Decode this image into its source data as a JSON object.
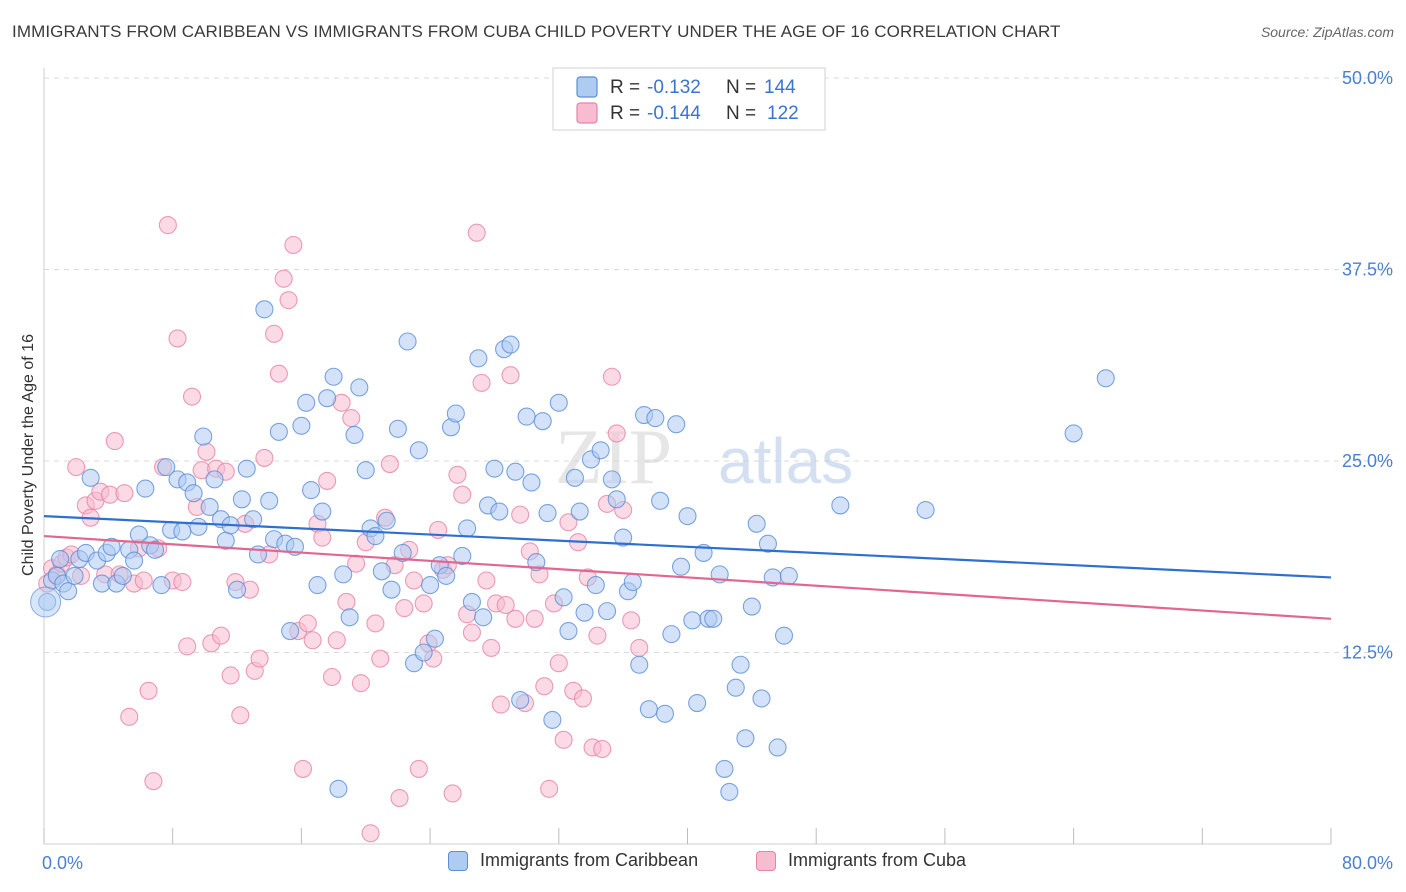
{
  "title": "IMMIGRANTS FROM CARIBBEAN VS IMMIGRANTS FROM CUBA CHILD POVERTY UNDER THE AGE OF 16 CORRELATION CHART",
  "source": "Source: ZipAtlas.com",
  "watermark": {
    "zip": "ZIP",
    "atlas": "atlas"
  },
  "colors": {
    "caribbean_fill": "#aecbf2",
    "caribbean_stroke": "#5b8fd6",
    "caribbean_line": "#2f6fd1",
    "cuba_fill": "#f7bcd0",
    "cuba_stroke": "#e683a6",
    "cuba_line": "#e26691",
    "axis_text": "#4a7fd1",
    "grid": "#d9d9d9"
  },
  "legend_top": [
    {
      "r_label": "R =",
      "r_value": "-0.132",
      "n_label": "N =",
      "n_value": "144"
    },
    {
      "r_label": "R =",
      "r_value": "-0.144",
      "n_label": "N =",
      "n_value": "122"
    }
  ],
  "chart_data": {
    "type": "scatter",
    "title": "IMMIGRANTS FROM CARIBBEAN VS IMMIGRANTS FROM CUBA CHILD POVERTY UNDER THE AGE OF 16 CORRELATION CHART",
    "xlabel": "",
    "ylabel": "Child Poverty Under the Age of 16",
    "xlim": [
      0,
      80
    ],
    "ylim": [
      0,
      50
    ],
    "x_tick_labels": [
      "0.0%",
      "80.0%"
    ],
    "y_ticks": [
      12.5,
      25.0,
      37.5,
      50.0
    ],
    "y_tick_labels": [
      "12.5%",
      "25.0%",
      "37.5%",
      "50.0%"
    ],
    "grid": true,
    "legend_position": "top-center",
    "series": [
      {
        "name": "Immigrants from Caribbean",
        "r": -0.132,
        "n": 144,
        "trend": {
          "x": [
            0,
            80
          ],
          "y": [
            21.4,
            17.4
          ]
        },
        "points": [
          [
            0.2,
            15.8
          ],
          [
            0.5,
            17.2
          ],
          [
            0.8,
            17.5
          ],
          [
            1.0,
            18.6
          ],
          [
            1.2,
            17.0
          ],
          [
            1.5,
            16.5
          ],
          [
            1.9,
            17.5
          ],
          [
            2.2,
            18.6
          ],
          [
            2.6,
            19.0
          ],
          [
            2.9,
            23.9
          ],
          [
            3.3,
            18.5
          ],
          [
            3.6,
            17.0
          ],
          [
            3.9,
            19.0
          ],
          [
            4.2,
            19.4
          ],
          [
            4.5,
            17.0
          ],
          [
            4.9,
            17.5
          ],
          [
            5.3,
            19.2
          ],
          [
            5.6,
            18.5
          ],
          [
            5.9,
            20.2
          ],
          [
            6.3,
            23.2
          ],
          [
            6.6,
            19.5
          ],
          [
            6.9,
            19.2
          ],
          [
            7.3,
            16.9
          ],
          [
            7.6,
            24.6
          ],
          [
            7.9,
            20.5
          ],
          [
            8.3,
            23.8
          ],
          [
            8.6,
            20.4
          ],
          [
            8.9,
            23.6
          ],
          [
            9.3,
            22.9
          ],
          [
            9.6,
            20.7
          ],
          [
            9.9,
            26.6
          ],
          [
            10.3,
            22.0
          ],
          [
            10.6,
            23.8
          ],
          [
            11.0,
            21.2
          ],
          [
            11.3,
            19.8
          ],
          [
            11.6,
            20.8
          ],
          [
            12.0,
            16.6
          ],
          [
            12.3,
            22.5
          ],
          [
            12.6,
            24.5
          ],
          [
            13.0,
            21.2
          ],
          [
            13.3,
            18.9
          ],
          [
            13.7,
            34.9
          ],
          [
            14.0,
            22.4
          ],
          [
            14.3,
            19.9
          ],
          [
            14.6,
            26.9
          ],
          [
            15.0,
            19.6
          ],
          [
            15.3,
            13.9
          ],
          [
            15.6,
            19.4
          ],
          [
            16.0,
            27.3
          ],
          [
            16.3,
            28.8
          ],
          [
            16.6,
            23.1
          ],
          [
            17.0,
            16.9
          ],
          [
            17.3,
            21.7
          ],
          [
            17.6,
            29.1
          ],
          [
            18.0,
            30.5
          ],
          [
            18.3,
            3.6
          ],
          [
            18.6,
            17.6
          ],
          [
            19.0,
            14.8
          ],
          [
            19.3,
            26.7
          ],
          [
            19.6,
            29.8
          ],
          [
            20.0,
            24.4
          ],
          [
            20.3,
            20.6
          ],
          [
            20.6,
            20.1
          ],
          [
            21.0,
            17.8
          ],
          [
            21.3,
            21.1
          ],
          [
            21.6,
            16.6
          ],
          [
            22.0,
            27.1
          ],
          [
            22.3,
            19.0
          ],
          [
            22.6,
            32.8
          ],
          [
            23.0,
            11.8
          ],
          [
            23.3,
            25.7
          ],
          [
            23.6,
            12.5
          ],
          [
            24.0,
            16.9
          ],
          [
            24.3,
            13.4
          ],
          [
            24.6,
            18.2
          ],
          [
            25.0,
            17.5
          ],
          [
            25.3,
            27.2
          ],
          [
            25.6,
            28.1
          ],
          [
            26.0,
            18.8
          ],
          [
            26.3,
            20.6
          ],
          [
            26.6,
            15.8
          ],
          [
            27.0,
            31.7
          ],
          [
            27.3,
            14.8
          ],
          [
            27.6,
            22.1
          ],
          [
            28.0,
            24.5
          ],
          [
            28.3,
            21.7
          ],
          [
            28.6,
            32.3
          ],
          [
            29.0,
            32.6
          ],
          [
            29.3,
            24.3
          ],
          [
            29.6,
            9.4
          ],
          [
            30.0,
            27.9
          ],
          [
            30.3,
            23.6
          ],
          [
            30.6,
            18.4
          ],
          [
            31.0,
            27.6
          ],
          [
            31.3,
            21.6
          ],
          [
            31.6,
            8.1
          ],
          [
            32.0,
            28.8
          ],
          [
            32.3,
            16.1
          ],
          [
            32.6,
            13.9
          ],
          [
            33.0,
            23.9
          ],
          [
            33.3,
            21.7
          ],
          [
            33.6,
            15.1
          ],
          [
            34.0,
            25.1
          ],
          [
            34.3,
            16.9
          ],
          [
            34.6,
            25.7
          ],
          [
            35.0,
            15.2
          ],
          [
            35.3,
            23.8
          ],
          [
            35.6,
            22.5
          ],
          [
            36.0,
            20.0
          ],
          [
            36.3,
            16.5
          ],
          [
            36.6,
            17.1
          ],
          [
            37.0,
            11.7
          ],
          [
            37.3,
            28.0
          ],
          [
            37.6,
            8.8
          ],
          [
            38.0,
            27.8
          ],
          [
            38.3,
            22.4
          ],
          [
            38.6,
            8.5
          ],
          [
            39.0,
            13.7
          ],
          [
            39.3,
            27.4
          ],
          [
            39.6,
            18.1
          ],
          [
            40.0,
            21.4
          ],
          [
            40.3,
            14.6
          ],
          [
            40.6,
            9.2
          ],
          [
            41.0,
            19.0
          ],
          [
            41.3,
            14.7
          ],
          [
            41.6,
            14.7
          ],
          [
            42.0,
            17.6
          ],
          [
            42.3,
            4.9
          ],
          [
            42.6,
            3.4
          ],
          [
            43.0,
            10.2
          ],
          [
            43.3,
            11.7
          ],
          [
            43.6,
            6.9
          ],
          [
            44.0,
            15.5
          ],
          [
            44.3,
            20.9
          ],
          [
            44.6,
            9.5
          ],
          [
            45.0,
            19.6
          ],
          [
            45.3,
            17.4
          ],
          [
            45.6,
            6.3
          ],
          [
            46.0,
            13.6
          ],
          [
            46.3,
            17.5
          ],
          [
            49.5,
            22.1
          ],
          [
            54.8,
            21.8
          ],
          [
            64.0,
            26.8
          ],
          [
            66.0,
            30.4
          ]
        ]
      },
      {
        "name": "Immigrants from Cuba",
        "r": -0.144,
        "n": 122,
        "trend": {
          "x": [
            0,
            80
          ],
          "y": [
            20.1,
            14.7
          ]
        },
        "points": [
          [
            0.2,
            17.0
          ],
          [
            0.5,
            18.0
          ],
          [
            0.8,
            17.6
          ],
          [
            1.1,
            18.3
          ],
          [
            1.4,
            18.7
          ],
          [
            1.7,
            18.9
          ],
          [
            2.0,
            24.6
          ],
          [
            2.3,
            17.5
          ],
          [
            2.6,
            22.1
          ],
          [
            2.9,
            21.3
          ],
          [
            3.2,
            22.4
          ],
          [
            3.5,
            23.0
          ],
          [
            3.8,
            17.6
          ],
          [
            4.1,
            22.8
          ],
          [
            4.4,
            26.3
          ],
          [
            4.7,
            17.6
          ],
          [
            5.0,
            22.9
          ],
          [
            5.3,
            8.3
          ],
          [
            5.6,
            17.0
          ],
          [
            5.9,
            19.3
          ],
          [
            6.2,
            17.2
          ],
          [
            6.5,
            10.0
          ],
          [
            6.8,
            4.1
          ],
          [
            7.1,
            19.3
          ],
          [
            7.4,
            24.6
          ],
          [
            7.7,
            40.4
          ],
          [
            8.0,
            17.2
          ],
          [
            8.3,
            33.0
          ],
          [
            8.6,
            17.1
          ],
          [
            8.9,
            12.9
          ],
          [
            9.2,
            29.2
          ],
          [
            9.5,
            22.0
          ],
          [
            9.8,
            24.4
          ],
          [
            10.1,
            25.6
          ],
          [
            10.4,
            13.1
          ],
          [
            10.7,
            24.5
          ],
          [
            11.0,
            13.6
          ],
          [
            11.3,
            24.3
          ],
          [
            11.6,
            11.0
          ],
          [
            11.9,
            17.1
          ],
          [
            12.2,
            8.4
          ],
          [
            12.5,
            20.9
          ],
          [
            12.8,
            16.6
          ],
          [
            13.1,
            11.3
          ],
          [
            13.4,
            12.1
          ],
          [
            13.7,
            25.2
          ],
          [
            14.0,
            18.9
          ],
          [
            14.3,
            33.3
          ],
          [
            14.6,
            30.7
          ],
          [
            14.9,
            36.9
          ],
          [
            15.2,
            35.5
          ],
          [
            15.5,
            39.1
          ],
          [
            15.8,
            13.9
          ],
          [
            16.1,
            4.9
          ],
          [
            16.4,
            14.4
          ],
          [
            16.7,
            13.3
          ],
          [
            17.0,
            20.9
          ],
          [
            17.3,
            20.0
          ],
          [
            17.6,
            23.7
          ],
          [
            17.9,
            10.9
          ],
          [
            18.2,
            13.3
          ],
          [
            18.5,
            28.8
          ],
          [
            18.8,
            15.8
          ],
          [
            19.1,
            27.8
          ],
          [
            19.4,
            18.3
          ],
          [
            19.7,
            10.5
          ],
          [
            20.0,
            19.7
          ],
          [
            20.3,
            0.7
          ],
          [
            20.6,
            14.4
          ],
          [
            20.9,
            12.1
          ],
          [
            21.2,
            21.3
          ],
          [
            21.5,
            24.8
          ],
          [
            21.8,
            18.2
          ],
          [
            22.1,
            3.0
          ],
          [
            22.4,
            15.4
          ],
          [
            22.7,
            19.2
          ],
          [
            23.0,
            17.2
          ],
          [
            23.3,
            4.9
          ],
          [
            23.6,
            15.7
          ],
          [
            23.9,
            13.1
          ],
          [
            24.2,
            12.1
          ],
          [
            24.5,
            20.5
          ],
          [
            24.8,
            17.9
          ],
          [
            25.1,
            18.2
          ],
          [
            25.4,
            3.3
          ],
          [
            25.7,
            24.1
          ],
          [
            26.0,
            22.8
          ],
          [
            26.3,
            15.0
          ],
          [
            26.6,
            13.8
          ],
          [
            26.9,
            39.9
          ],
          [
            27.2,
            30.1
          ],
          [
            27.5,
            17.2
          ],
          [
            27.8,
            12.8
          ],
          [
            28.1,
            15.7
          ],
          [
            28.4,
            9.1
          ],
          [
            28.7,
            15.6
          ],
          [
            29.0,
            30.6
          ],
          [
            29.3,
            14.7
          ],
          [
            29.6,
            21.5
          ],
          [
            29.9,
            9.2
          ],
          [
            30.2,
            19.1
          ],
          [
            30.5,
            14.7
          ],
          [
            30.8,
            17.6
          ],
          [
            31.1,
            10.3
          ],
          [
            31.4,
            3.6
          ],
          [
            31.7,
            15.7
          ],
          [
            32.0,
            11.8
          ],
          [
            32.3,
            6.8
          ],
          [
            32.6,
            21.0
          ],
          [
            32.9,
            10.0
          ],
          [
            33.2,
            19.7
          ],
          [
            33.5,
            9.5
          ],
          [
            33.8,
            17.4
          ],
          [
            34.1,
            6.3
          ],
          [
            34.4,
            13.6
          ],
          [
            34.7,
            6.2
          ],
          [
            35.0,
            22.2
          ],
          [
            35.3,
            30.5
          ],
          [
            35.6,
            26.8
          ],
          [
            36.0,
            21.8
          ],
          [
            36.5,
            14.6
          ],
          [
            37.0,
            12.8
          ]
        ]
      }
    ]
  },
  "legend_bottom": [
    {
      "label": "Immigrants from Caribbean"
    },
    {
      "label": "Immigrants from Cuba"
    }
  ],
  "axes": {
    "y_label": "Child Poverty Under the Age of 16",
    "x_min_label": "0.0%",
    "x_max_label": "80.0%"
  }
}
